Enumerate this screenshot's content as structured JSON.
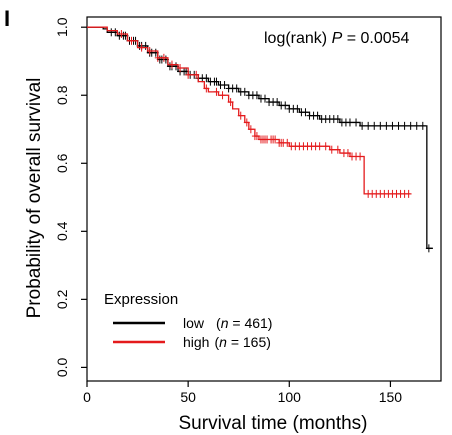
{
  "panel_label": "I",
  "colors": {
    "low": "#000000",
    "high": "#e41a1c",
    "axis": "#000000"
  },
  "chart_data": {
    "type": "line",
    "title": "",
    "xlabel": "Survival time (months)",
    "ylabel": "Probability of overall survival",
    "xlim": [
      0,
      175
    ],
    "ylim": [
      0,
      1.0
    ],
    "x_ticks": [
      0,
      50,
      100,
      150
    ],
    "y_ticks": [
      0.0,
      0.2,
      0.4,
      0.6,
      0.8,
      1.0
    ],
    "x_tick_labels": [
      "0",
      "50",
      "100",
      "150"
    ],
    "y_tick_labels": [
      "0.0",
      "0.2",
      "0.4",
      "0.6",
      "0.8",
      "1.0"
    ],
    "annotation": {
      "prefix": "log(rank) ",
      "p_symbol": "P",
      "suffix": " = 0.0054"
    },
    "legend": {
      "title": "Expression",
      "position": "bottom-left",
      "entries": [
        {
          "label": "low",
          "n_text": "(",
          "n_symbol": "n",
          "n_value": " = 461)"
        },
        {
          "label": "high",
          "n_text": "(",
          "n_symbol": "n",
          "n_value": " = 165)"
        }
      ]
    },
    "series": [
      {
        "name": "low",
        "color": "#000000",
        "points": [
          [
            0,
            1.0
          ],
          [
            8,
            0.995
          ],
          [
            10,
            0.985
          ],
          [
            15,
            0.975
          ],
          [
            20,
            0.96
          ],
          [
            25,
            0.945
          ],
          [
            30,
            0.925
          ],
          [
            35,
            0.905
          ],
          [
            40,
            0.885
          ],
          [
            45,
            0.87
          ],
          [
            50,
            0.86
          ],
          [
            55,
            0.85
          ],
          [
            60,
            0.84
          ],
          [
            65,
            0.83
          ],
          [
            70,
            0.82
          ],
          [
            75,
            0.81
          ],
          [
            80,
            0.8
          ],
          [
            85,
            0.79
          ],
          [
            90,
            0.78
          ],
          [
            95,
            0.77
          ],
          [
            100,
            0.76
          ],
          [
            105,
            0.75
          ],
          [
            110,
            0.74
          ],
          [
            115,
            0.73
          ],
          [
            120,
            0.73
          ],
          [
            125,
            0.72
          ],
          [
            130,
            0.72
          ],
          [
            135,
            0.71
          ],
          [
            150,
            0.71
          ],
          [
            168,
            0.71
          ],
          [
            168,
            0.35
          ],
          [
            171,
            0.35
          ]
        ],
        "censor_x": [
          12,
          14,
          16,
          18,
          19,
          21,
          23,
          24,
          26,
          27,
          29,
          31,
          32,
          34,
          36,
          37,
          39,
          41,
          42,
          44,
          46,
          48,
          49,
          51,
          53,
          55,
          57,
          59,
          61,
          63,
          64,
          66,
          68,
          70,
          72,
          74,
          76,
          78,
          80,
          82,
          84,
          86,
          88,
          90,
          92,
          94,
          96,
          98,
          100,
          102,
          104,
          106,
          108,
          110,
          112,
          114,
          116,
          118,
          120,
          122,
          124,
          126,
          128,
          130,
          133,
          136,
          139,
          142,
          145,
          148,
          151,
          154,
          157,
          160,
          163,
          166,
          169
        ]
      },
      {
        "name": "high",
        "color": "#e41a1c",
        "points": [
          [
            0,
            1.0
          ],
          [
            10,
            0.99
          ],
          [
            15,
            0.98
          ],
          [
            20,
            0.96
          ],
          [
            25,
            0.94
          ],
          [
            30,
            0.93
          ],
          [
            35,
            0.91
          ],
          [
            40,
            0.89
          ],
          [
            45,
            0.88
          ],
          [
            50,
            0.86
          ],
          [
            55,
            0.84
          ],
          [
            58,
            0.82
          ],
          [
            60,
            0.81
          ],
          [
            65,
            0.8
          ],
          [
            70,
            0.78
          ],
          [
            72,
            0.76
          ],
          [
            75,
            0.74
          ],
          [
            78,
            0.72
          ],
          [
            80,
            0.7
          ],
          [
            83,
            0.68
          ],
          [
            85,
            0.67
          ],
          [
            90,
            0.67
          ],
          [
            95,
            0.66
          ],
          [
            100,
            0.65
          ],
          [
            110,
            0.65
          ],
          [
            120,
            0.64
          ],
          [
            125,
            0.63
          ],
          [
            130,
            0.62
          ],
          [
            136,
            0.62
          ],
          [
            137,
            0.51
          ],
          [
            160,
            0.51
          ]
        ],
        "censor_x": [
          17,
          22,
          27,
          31,
          35,
          38,
          42,
          46,
          50,
          54,
          59,
          64,
          67,
          71,
          76,
          79,
          81,
          83,
          84,
          86,
          87,
          88,
          89,
          91,
          92,
          93,
          95,
          96,
          97,
          99,
          101,
          103,
          105,
          107,
          109,
          111,
          113,
          115,
          118,
          121,
          124,
          127,
          129,
          131,
          133,
          135,
          139,
          141,
          143,
          145,
          147,
          149,
          151,
          153,
          155,
          157,
          159
        ]
      }
    ]
  }
}
